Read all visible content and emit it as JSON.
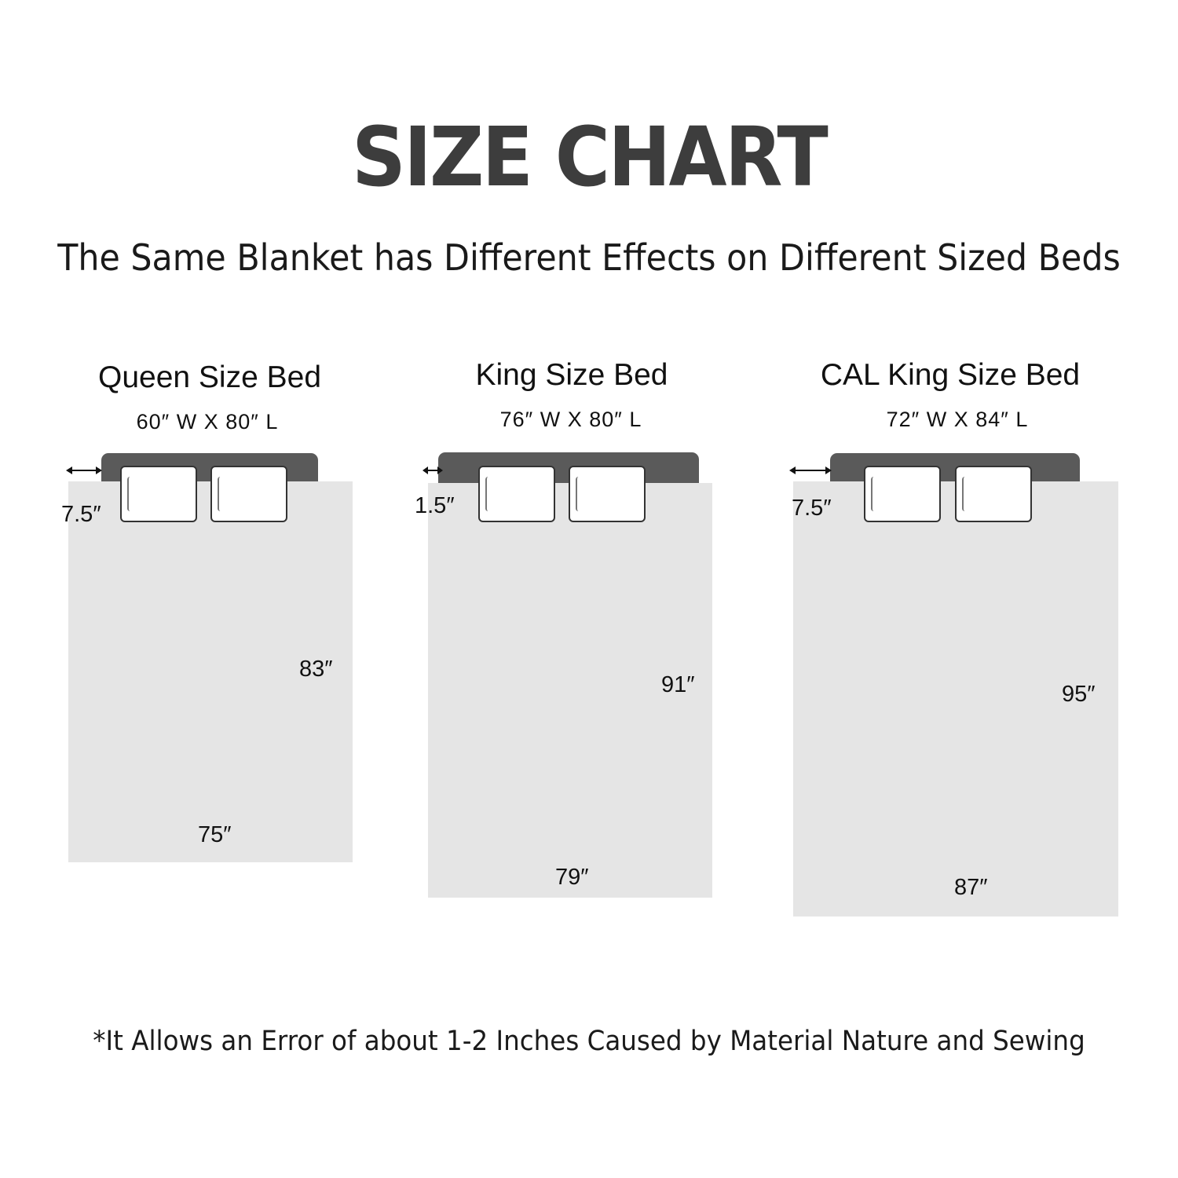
{
  "title": "SIZE CHART",
  "subtitle": "The Same Blanket has Different Effects on Different Sized Beds",
  "beds": [
    {
      "name": "Queen Size Bed",
      "dimensions": "60″ W X 80″ L",
      "overhang": "7.5″",
      "blanket_length": "83″",
      "blanket_width": "75″"
    },
    {
      "name": "King Size Bed",
      "dimensions": "76″ W X 80″ L",
      "overhang": "1.5″",
      "blanket_length": "91″",
      "blanket_width": "79″"
    },
    {
      "name": "CAL King Size Bed",
      "dimensions": "72″ W X 84″ L",
      "overhang": "7.5″",
      "blanket_length": "95″",
      "blanket_width": "87″"
    }
  ],
  "footnote": "*It Allows an Error of about 1-2 Inches Caused by Material Nature and Sewing",
  "colors": {
    "title": "#3d3d3d",
    "headboard": "#5a5a5a",
    "blanket": "#e5e5e5",
    "pillow": "#ffffff"
  }
}
